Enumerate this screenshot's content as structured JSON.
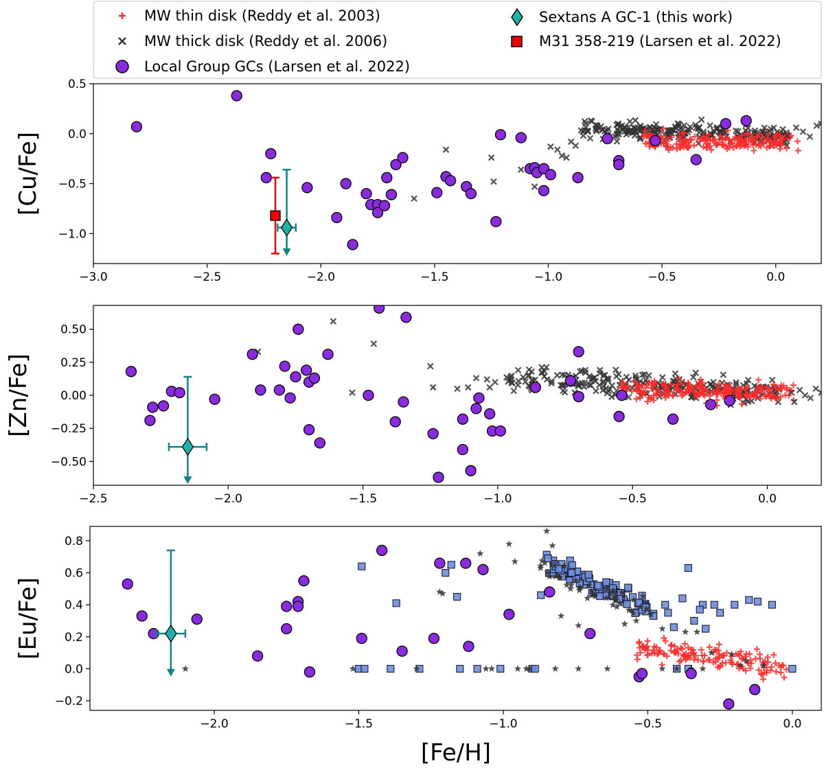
{
  "legend": {
    "thin": "MW thin disk (Reddy et al. 2003)",
    "thick": "MW thick disk (Reddy et al. 2006)",
    "lg": "Local Group GCs (Larsen et al. 2022)",
    "sexa": "Sextans A GC-1 (this work)",
    "m31": "M31 358-219 (Larsen et al. 2022)"
  },
  "colors": {
    "thin": "#ff2a2a",
    "thick": "#333333",
    "lg": "#8a2be2",
    "sexa": "#20b2aa",
    "sexa_err": "#108585",
    "m31": "#ee0000",
    "blue_sq": "#6e8fdf"
  },
  "chart_data": [
    {
      "type": "scatter",
      "name": "cu",
      "xlabel": "",
      "ylabel": "[Cu/Fe]",
      "xlim": [
        -3.0,
        0.2
      ],
      "ylim": [
        -1.3,
        0.5
      ],
      "xticks": [
        -3.0,
        -2.5,
        -2.0,
        -1.5,
        -1.0,
        -0.5,
        0.0
      ],
      "xtick_labels": [
        "−3.0",
        "−2.5",
        "−2.0",
        "−1.5",
        "−1.0",
        "−0.5",
        "0.0"
      ],
      "yticks": [
        -1.0,
        -0.5,
        0.0,
        0.5
      ],
      "ytick_labels": [
        "−1.0",
        "−0.5",
        "0.0",
        "0.5"
      ],
      "local_group_gcs": [
        [
          -2.81,
          0.07
        ],
        [
          -2.37,
          0.38
        ],
        [
          -2.22,
          -0.2
        ],
        [
          -2.24,
          -0.44
        ],
        [
          -2.06,
          -0.54
        ],
        [
          -1.93,
          -0.84
        ],
        [
          -1.89,
          -0.5
        ],
        [
          -1.86,
          -1.11
        ],
        [
          -1.8,
          -0.6
        ],
        [
          -1.78,
          -0.71
        ],
        [
          -1.75,
          -0.71
        ],
        [
          -1.75,
          -0.79
        ],
        [
          -1.72,
          -0.72
        ],
        [
          -1.71,
          -0.44
        ],
        [
          -1.69,
          -0.61
        ],
        [
          -1.67,
          -0.31
        ],
        [
          -1.64,
          -0.24
        ],
        [
          -1.49,
          -0.59
        ],
        [
          -1.45,
          -0.43
        ],
        [
          -1.43,
          -0.47
        ],
        [
          -1.36,
          -0.53
        ],
        [
          -1.34,
          -0.6
        ],
        [
          -1.23,
          -0.88
        ],
        [
          -1.21,
          -0.01
        ],
        [
          -1.12,
          -0.04
        ],
        [
          -1.08,
          -0.35
        ],
        [
          -1.06,
          -0.34
        ],
        [
          -1.05,
          -0.39
        ],
        [
          -1.02,
          -0.35
        ],
        [
          -1.02,
          -0.57
        ],
        [
          -0.99,
          -0.41
        ],
        [
          -0.87,
          -0.44
        ],
        [
          -0.74,
          -0.05
        ],
        [
          -0.69,
          -0.27
        ],
        [
          -0.69,
          -0.31
        ],
        [
          -0.53,
          -0.07
        ],
        [
          -0.35,
          -0.26
        ],
        [
          -0.22,
          0.1
        ],
        [
          -0.13,
          0.13
        ]
      ],
      "sextans_a": {
        "x": -2.15,
        "y": -0.94,
        "xerr": 0.04,
        "yerr_up": 0.58,
        "yerr_down": 0.27,
        "upper_limit": true
      },
      "m31": {
        "x": -2.2,
        "y": -0.82,
        "yerr": 0.38
      },
      "thick_disk_extra": [
        [
          -1.59,
          -0.65
        ],
        [
          -1.45,
          -0.16
        ],
        [
          -1.25,
          -0.24
        ],
        [
          -1.24,
          -0.48
        ],
        [
          -1.12,
          -0.36
        ],
        [
          -1.06,
          -0.53
        ],
        [
          -0.99,
          -0.13
        ],
        [
          -0.96,
          -0.16
        ],
        [
          -0.94,
          -0.22
        ],
        [
          -0.92,
          -0.24
        ],
        [
          -0.9,
          -0.08
        ],
        [
          -0.88,
          -0.12
        ],
        [
          0.05,
          -0.02
        ],
        [
          0.09,
          0.06
        ],
        [
          0.12,
          0.02
        ],
        [
          0.15,
          -0.03
        ],
        [
          0.18,
          0.08
        ],
        [
          0.2,
          0.1
        ]
      ],
      "thick_cloud": {
        "n": 240,
        "x0": -0.88,
        "x1": 0.05,
        "slope": -0.1,
        "y_at_x0": 0.06,
        "spread": 0.09,
        "seed": 11
      },
      "thin_cloud": {
        "n": 190,
        "x0": -0.58,
        "x1": 0.1,
        "slope": 0.0,
        "y_at_x0": -0.08,
        "spread": 0.09,
        "seed": 23
      }
    },
    {
      "type": "scatter",
      "name": "zn",
      "xlabel": "",
      "ylabel": "[Zn/Fe]",
      "xlim": [
        -2.5,
        0.2
      ],
      "ylim": [
        -0.68,
        0.68
      ],
      "xticks": [
        -2.5,
        -2.0,
        -1.5,
        -1.0,
        -0.5,
        0.0
      ],
      "xtick_labels": [
        "−2.5",
        "−2.0",
        "−1.5",
        "−1.0",
        "−0.5",
        "0.0"
      ],
      "yticks": [
        -0.5,
        -0.25,
        0.0,
        0.25,
        0.5
      ],
      "ytick_labels": [
        "−0.50",
        "−0.25",
        "0.00",
        "0.25",
        "0.50"
      ],
      "local_group_gcs": [
        [
          -2.36,
          0.18
        ],
        [
          -2.29,
          -0.19
        ],
        [
          -2.28,
          -0.09
        ],
        [
          -2.24,
          -0.08
        ],
        [
          -2.21,
          0.03
        ],
        [
          -2.18,
          0.02
        ],
        [
          -2.05,
          -0.03
        ],
        [
          -1.91,
          0.31
        ],
        [
          -1.88,
          0.04
        ],
        [
          -1.81,
          0.04
        ],
        [
          -1.79,
          0.22
        ],
        [
          -1.77,
          -0.02
        ],
        [
          -1.75,
          0.14
        ],
        [
          -1.74,
          0.5
        ],
        [
          -1.71,
          0.19
        ],
        [
          -1.7,
          0.1
        ],
        [
          -1.7,
          -0.26
        ],
        [
          -1.68,
          0.13
        ],
        [
          -1.66,
          -0.36
        ],
        [
          -1.63,
          0.31
        ],
        [
          -1.48,
          0.0
        ],
        [
          -1.44,
          0.66
        ],
        [
          -1.38,
          -0.2
        ],
        [
          -1.35,
          -0.05
        ],
        [
          -1.34,
          0.59
        ],
        [
          -1.24,
          -0.29
        ],
        [
          -1.22,
          -0.62
        ],
        [
          -1.13,
          -0.18
        ],
        [
          -1.13,
          -0.41
        ],
        [
          -1.1,
          -0.57
        ],
        [
          -1.08,
          -0.1
        ],
        [
          -1.07,
          -0.02
        ],
        [
          -1.03,
          -0.14
        ],
        [
          -1.02,
          -0.27
        ],
        [
          -0.99,
          -0.27
        ],
        [
          -0.86,
          0.06
        ],
        [
          -0.73,
          0.11
        ],
        [
          -0.7,
          0.33
        ],
        [
          -0.7,
          -0.01
        ],
        [
          -0.55,
          -0.16
        ],
        [
          -0.54,
          0.0
        ],
        [
          -0.35,
          -0.18
        ],
        [
          -0.21,
          -0.07
        ],
        [
          -0.14,
          -0.04
        ]
      ],
      "sextans_a": {
        "x": -2.15,
        "y": -0.39,
        "xerr": 0.07,
        "yerr_up": 0.53,
        "yerr_down": 0.27,
        "upper_limit": true
      },
      "thick_disk_extra": [
        [
          -1.89,
          0.33
        ],
        [
          -1.61,
          0.56
        ],
        [
          -1.54,
          0.02
        ],
        [
          -1.46,
          0.39
        ],
        [
          -1.25,
          0.22
        ],
        [
          -1.24,
          0.06
        ],
        [
          -1.15,
          0.05
        ],
        [
          -1.11,
          0.06
        ],
        [
          -1.08,
          0.13
        ],
        [
          -1.04,
          0.12
        ],
        [
          -1.03,
          0.06
        ],
        [
          -1.01,
          0.1
        ],
        [
          0.09,
          0.02
        ],
        [
          0.1,
          -0.05
        ],
        [
          0.12,
          0.04
        ],
        [
          0.14,
          0.0
        ],
        [
          0.16,
          -0.02
        ],
        [
          0.18,
          0.05
        ],
        [
          0.2,
          0.02
        ]
      ],
      "thick_cloud": {
        "n": 260,
        "x0": -0.97,
        "x1": 0.05,
        "slope": -0.12,
        "y_at_x0": 0.14,
        "spread": 0.09,
        "seed": 37
      },
      "thin_cloud": {
        "n": 200,
        "x0": -0.55,
        "x1": 0.1,
        "slope": -0.06,
        "y_at_x0": 0.05,
        "spread": 0.07,
        "seed": 41
      }
    },
    {
      "type": "scatter",
      "name": "eu",
      "xlabel": "[Fe/H]",
      "ylabel": "[Eu/Fe]",
      "xlim": [
        -2.43,
        0.1
      ],
      "ylim": [
        -0.26,
        0.89
      ],
      "xticks": [
        -2.0,
        -1.5,
        -1.0,
        -0.5,
        0.0
      ],
      "xtick_labels": [
        "−2.0",
        "−1.5",
        "−1.0",
        "−0.5",
        "0.0"
      ],
      "yticks": [
        -0.2,
        0.0,
        0.2,
        0.4,
        0.6,
        0.8
      ],
      "ytick_labels": [
        "−0.2",
        "0.0",
        "0.2",
        "0.4",
        "0.6",
        "0.8"
      ],
      "local_group_gcs": [
        [
          -2.3,
          0.53
        ],
        [
          -2.25,
          0.33
        ],
        [
          -2.21,
          0.22
        ],
        [
          -2.06,
          0.31
        ],
        [
          -1.85,
          0.08
        ],
        [
          -1.75,
          0.39
        ],
        [
          -1.75,
          0.25
        ],
        [
          -1.71,
          0.42
        ],
        [
          -1.71,
          0.39
        ],
        [
          -1.69,
          0.55
        ],
        [
          -1.67,
          -0.02
        ],
        [
          -1.49,
          0.19
        ],
        [
          -1.42,
          0.74
        ],
        [
          -1.35,
          0.11
        ],
        [
          -1.24,
          0.19
        ],
        [
          -1.22,
          0.66
        ],
        [
          -1.13,
          0.66
        ],
        [
          -1.12,
          0.14
        ],
        [
          -1.07,
          0.62
        ],
        [
          -0.98,
          0.34
        ],
        [
          -0.84,
          0.48
        ],
        [
          -0.7,
          0.22
        ],
        [
          -0.53,
          -0.05
        ],
        [
          -0.52,
          -0.03
        ],
        [
          -0.35,
          -0.03
        ],
        [
          -0.22,
          -0.22
        ],
        [
          -0.13,
          -0.13
        ]
      ],
      "sextans_a": {
        "x": -2.15,
        "y": 0.22,
        "xerr": 0.05,
        "yerr_up": 0.52,
        "yerr_down": 0.26,
        "upper_limit": true
      },
      "blue_squares": [
        [
          -1.49,
          0.64
        ],
        [
          -1.5,
          0.0
        ],
        [
          -1.48,
          0.0
        ],
        [
          -1.39,
          0.0
        ],
        [
          -1.37,
          0.41
        ],
        [
          -1.29,
          0.0
        ],
        [
          -1.2,
          0.6
        ],
        [
          -1.18,
          0.65
        ],
        [
          -1.16,
          0.45
        ],
        [
          -1.15,
          0.0
        ],
        [
          -1.09,
          0.0
        ],
        [
          -1.01,
          0.0
        ],
        [
          -0.9,
          0.0
        ],
        [
          -0.89,
          0.0
        ],
        [
          -0.87,
          0.46
        ],
        [
          -0.4,
          0.0
        ],
        [
          -0.38,
          0.44
        ],
        [
          -0.36,
          0.0
        ],
        [
          -0.34,
          0.3
        ],
        [
          -0.31,
          0.4
        ],
        [
          -0.27,
          0.4
        ],
        [
          -0.25,
          0.35
        ],
        [
          -0.2,
          0.4
        ],
        [
          -0.15,
          0.43
        ],
        [
          -0.12,
          0.42
        ],
        [
          -0.07,
          0.4
        ],
        [
          0.0,
          0.0
        ],
        [
          -0.43,
          0.35
        ],
        [
          -0.41,
          0.26
        ],
        [
          -0.44,
          0.4
        ],
        [
          -0.36,
          0.63
        ],
        [
          -0.32,
          0.37
        ],
        [
          -0.3,
          0.25
        ]
      ],
      "blue_cloud": {
        "n": 95,
        "x0": -0.86,
        "x1": -0.48,
        "slope": -0.8,
        "y_at_x0": 0.67,
        "spread": 0.06,
        "seed": 53
      },
      "thick_stars": [
        [
          -2.1,
          0.0
        ],
        [
          -1.52,
          0.0
        ],
        [
          -1.3,
          0.0
        ],
        [
          -1.22,
          0.48
        ],
        [
          -1.21,
          0.47
        ],
        [
          -1.08,
          0.72
        ],
        [
          -1.06,
          0.0
        ],
        [
          -1.04,
          0.0
        ],
        [
          -0.98,
          0.78
        ],
        [
          -0.95,
          0.0
        ],
        [
          -0.92,
          0.0
        ],
        [
          -0.91,
          0.0
        ],
        [
          -0.85,
          0.86
        ],
        [
          -0.82,
          0.0
        ],
        [
          -0.74,
          0.0
        ],
        [
          -0.64,
          0.0
        ],
        [
          -0.45,
          0.0
        ],
        [
          -0.4,
          0.0
        ],
        [
          -0.35,
          0.0
        ],
        [
          -0.31,
          0.0
        ],
        [
          -0.96,
          0.67
        ],
        [
          -0.83,
          0.77
        ],
        [
          -0.8,
          0.33
        ],
        [
          -0.74,
          0.27
        ],
        [
          -0.58,
          0.28
        ],
        [
          -0.54,
          0.3
        ],
        [
          -0.49,
          0.34
        ],
        [
          -0.45,
          0.25
        ],
        [
          -0.37,
          0.23
        ],
        [
          -0.33,
          0.23
        ],
        [
          -0.28,
          0.1
        ],
        [
          -0.21,
          0.09
        ],
        [
          -0.18,
          0.02
        ],
        [
          -0.16,
          0.05
        ],
        [
          -0.1,
          0.02
        ]
      ],
      "star_cloud": {
        "n": 45,
        "x0": -0.88,
        "x1": -0.5,
        "slope": -0.8,
        "y_at_x0": 0.65,
        "spread": 0.07,
        "seed": 67
      },
      "thin_cloud": {
        "n": 150,
        "x0": -0.55,
        "x1": -0.02,
        "slope": -0.25,
        "y_at_x0": 0.14,
        "spread": 0.07,
        "seed": 79
      }
    }
  ]
}
